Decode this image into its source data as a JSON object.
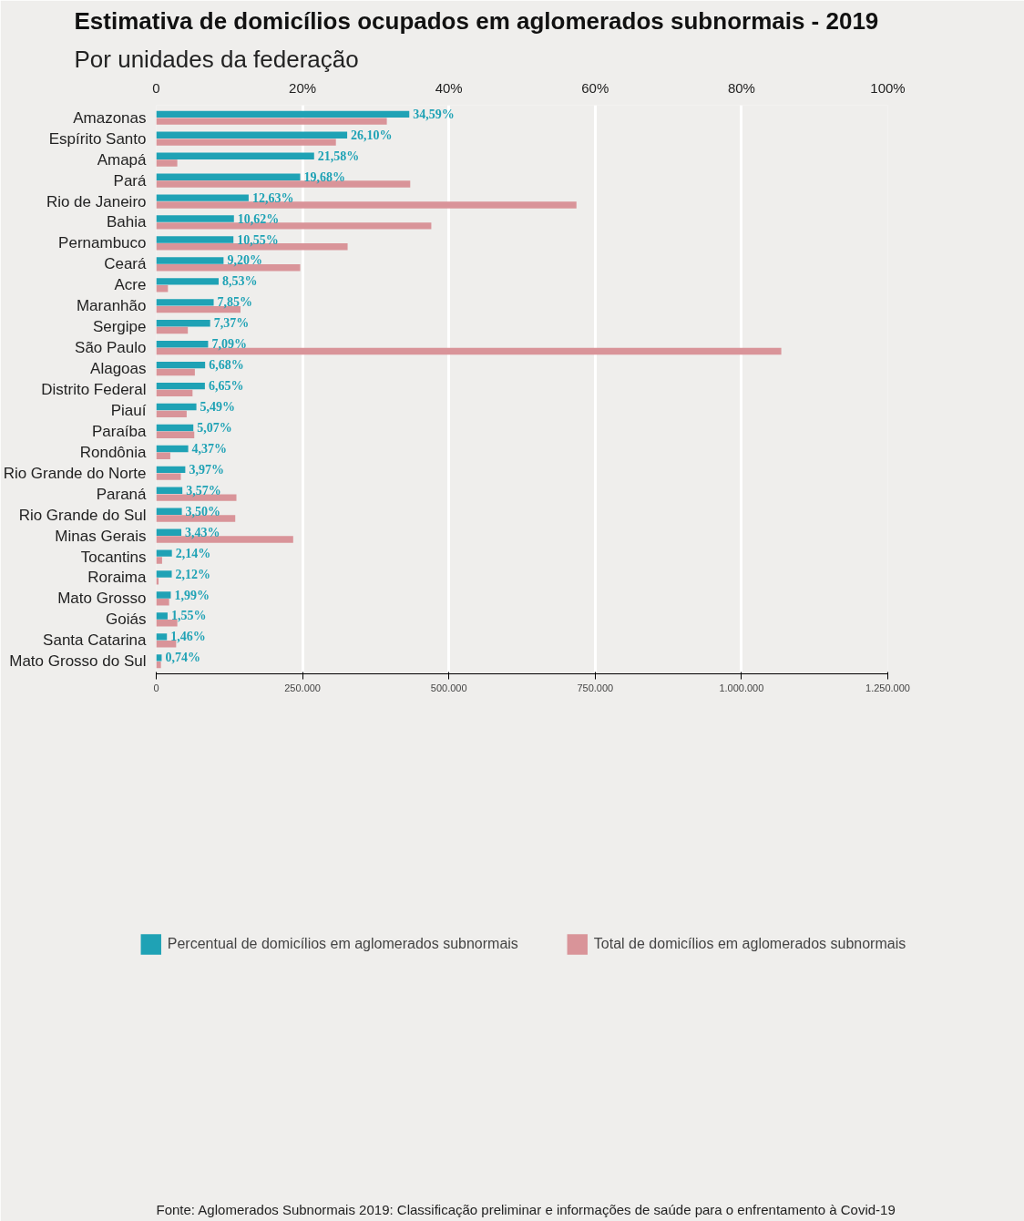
{
  "chart_data": {
    "type": "bar",
    "orientation": "horizontal",
    "title": "Estimativa de domicílios ocupados em aglomerados subnormais - 2019",
    "subtitle": "Por unidades da federação",
    "categories": [
      "Amazonas",
      "Espírito Santo",
      "Amapá",
      "Pará",
      "Rio de Janeiro",
      "Bahia",
      "Pernambuco",
      "Ceará",
      "Acre",
      "Maranhão",
      "Sergipe",
      "São Paulo",
      "Alagoas",
      "Distrito Federal",
      "Piauí",
      "Paraíba",
      "Rondônia",
      "Rio Grande do Norte",
      "Paraná",
      "Rio Grande do Sul",
      "Minas Gerais",
      "Tocantins",
      "Roraima",
      "Mato Grosso",
      "Goiás",
      "Santa Catarina",
      "Mato Grosso do Sul"
    ],
    "series": [
      {
        "name": "Percentual de domicílios em aglomerados subnormais",
        "color": "#1fa2b5",
        "axis": "x2",
        "values": [
          34.59,
          26.1,
          21.58,
          19.68,
          12.63,
          10.62,
          10.55,
          9.2,
          8.53,
          7.85,
          7.37,
          7.09,
          6.68,
          6.65,
          5.49,
          5.07,
          4.37,
          3.97,
          3.57,
          3.5,
          3.43,
          2.14,
          2.12,
          1.99,
          1.55,
          1.46,
          0.74
        ],
        "value_labels": [
          "34,59%",
          "26,10%",
          "21,58%",
          "19,68%",
          "12,63%",
          "10,62%",
          "10,55%",
          "9,20%",
          "8,53%",
          "7,85%",
          "7,37%",
          "7,09%",
          "6,68%",
          "6,65%",
          "5,49%",
          "5,07%",
          "4,37%",
          "3,97%",
          "3,57%",
          "3,50%",
          "3,43%",
          "2,14%",
          "2,12%",
          "1,99%",
          "1,55%",
          "1,46%",
          "0,74%"
        ]
      },
      {
        "name": "Total de domicílios em aglomerados subnormais",
        "color": "#d99499",
        "values": [
          394000,
          307000,
          36000,
          434000,
          718000,
          470000,
          327000,
          246000,
          20000,
          144000,
          54000,
          1068000,
          66000,
          62000,
          52000,
          65000,
          24000,
          42000,
          137000,
          135000,
          234000,
          10000,
          4000,
          22000,
          36000,
          34000,
          8000
        ]
      }
    ],
    "xlim": [
      0,
      1250000
    ],
    "xticks": [
      0,
      {
        "value": 250000,
        "label": "250.000"
      },
      {
        "value": 500000,
        "label": "500.000"
      },
      {
        "value": 750000,
        "label": "750.000"
      },
      {
        "value": 1000000,
        "label": "1.000.000"
      },
      {
        "value": 1250000,
        "label": "1.250.000"
      }
    ],
    "x2lim": [
      0,
      100
    ],
    "x2ticks": [
      0,
      {
        "value": 20,
        "label": "20%"
      },
      {
        "value": 40,
        "label": "40%"
      },
      {
        "value": 60,
        "label": "60%"
      },
      {
        "value": 80,
        "label": "80%"
      },
      {
        "value": 100,
        "label": "100%"
      }
    ],
    "grid": "x",
    "legend": "bottom",
    "annotations": [
      "Fonte: Aglomerados Subnormais 2019: Classificação preliminar e informações de saúde para o enfrentamento à Covid-19"
    ]
  }
}
